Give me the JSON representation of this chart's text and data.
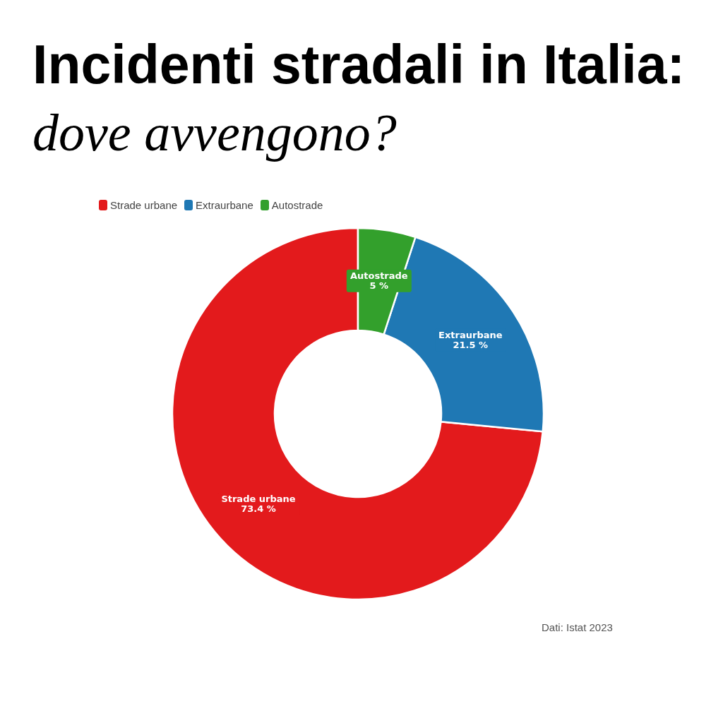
{
  "chart_data": {
    "type": "donut",
    "title": "Incidenti stradali in Italia:",
    "subtitle": "dove avvengono?",
    "categories": [
      "Strade urbane",
      "Extraurbane",
      "Autostrade"
    ],
    "values": [
      73.4,
      21.5,
      5
    ],
    "colors": [
      "#e31a1c",
      "#1f78b4",
      "#33a02c"
    ],
    "value_labels": [
      "73.4 %",
      "21.5 %",
      "5 %"
    ],
    "legend": "top left",
    "annotations": [
      "Dati: Istat 2023"
    ]
  }
}
